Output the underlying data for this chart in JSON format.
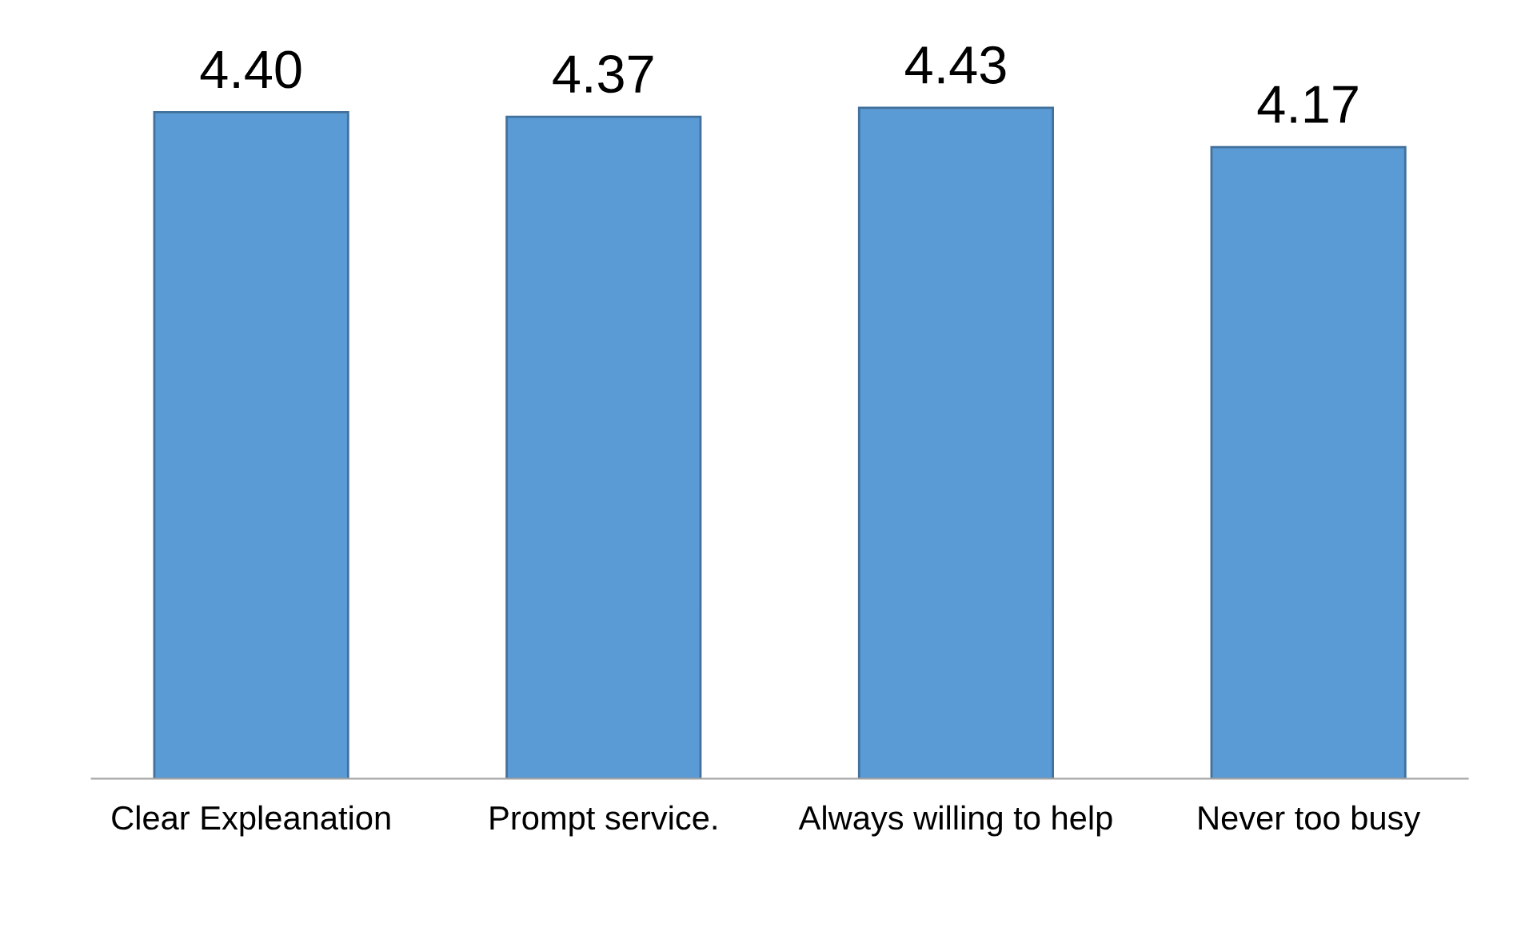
{
  "chart_data": {
    "type": "bar",
    "categories": [
      "Clear Expleanation",
      "Prompt service.",
      "Always willing to help",
      "Never too busy"
    ],
    "values": [
      4.4,
      4.37,
      4.43,
      4.17
    ],
    "value_labels": [
      "4.40",
      "4.37",
      "4.43",
      "4.17"
    ],
    "color": "#5b9bd5",
    "grid": false,
    "legend": false
  }
}
